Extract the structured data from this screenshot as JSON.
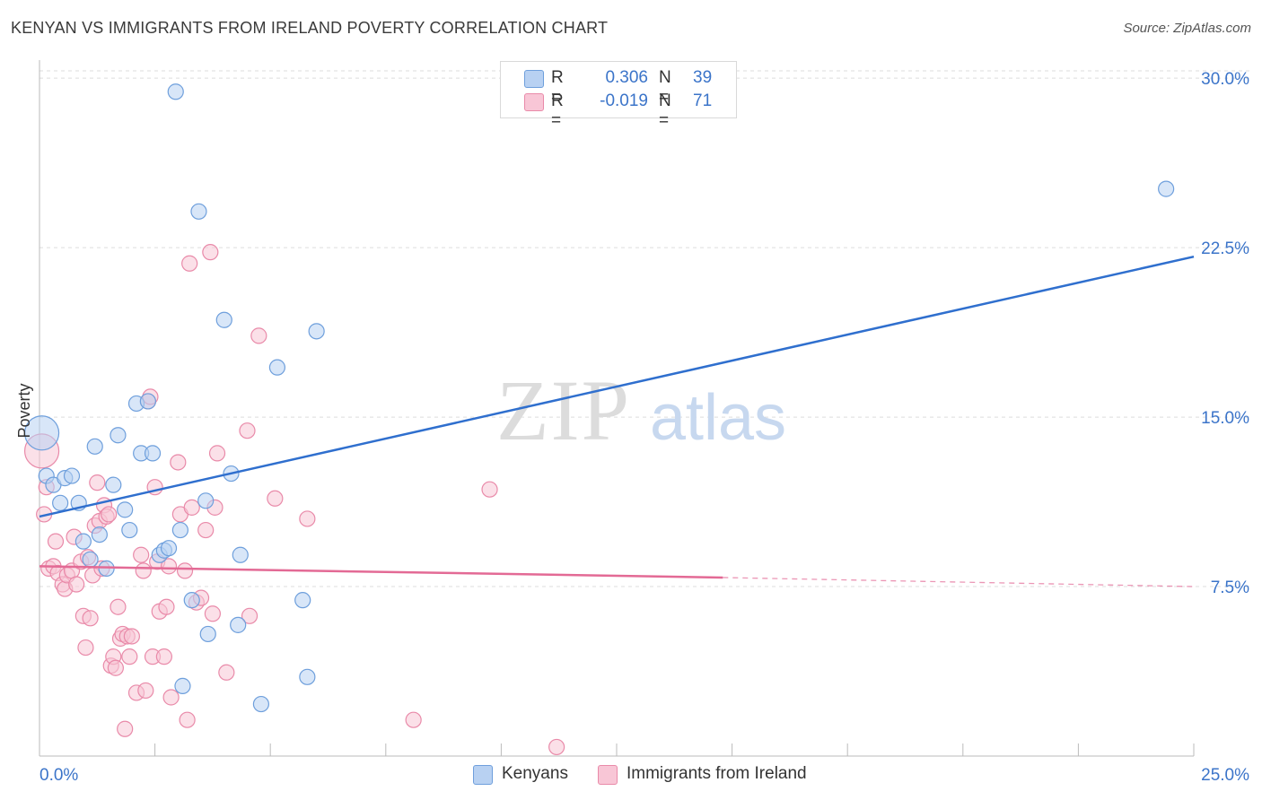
{
  "header": {
    "title": "KENYAN VS IMMIGRANTS FROM IRELAND POVERTY CORRELATION CHART",
    "source": "Source: ZipAtlas.com"
  },
  "legend": {
    "r_label": "R =",
    "n_label": "N =",
    "kenyans": {
      "r": "0.306",
      "n": "39"
    },
    "ireland": {
      "r": "-0.019",
      "n": "71"
    }
  },
  "watermark": {
    "zip": "ZIP",
    "atlas": "atlas"
  },
  "colors": {
    "kenyans_fill": "#b8d1f2",
    "kenyans_stroke": "#6e9fdc",
    "kenyans_line": "#2f6fce",
    "ireland_fill": "#f8c6d6",
    "ireland_stroke": "#e98aa9",
    "ireland_line": "#e36a95",
    "tick_label": "#3b74c9",
    "grid": "#dddddd"
  },
  "chart_data": {
    "type": "scatter",
    "title": "KENYAN VS IMMIGRANTS FROM IRELAND POVERTY CORRELATION CHART",
    "xlabel": "",
    "ylabel": "Poverty",
    "xlim": [
      0,
      25
    ],
    "ylim": [
      0,
      30.8
    ],
    "x_tick_labels": {
      "left": "0.0%",
      "right": "25.0%"
    },
    "y_ticks": [
      {
        "value": 7.5,
        "label": "7.5%"
      },
      {
        "value": 15.0,
        "label": "15.0%"
      },
      {
        "value": 22.5,
        "label": "22.5%"
      },
      {
        "value": 30.0,
        "label": "30.0%"
      }
    ],
    "series": [
      {
        "name": "Kenyans",
        "r": 0.306,
        "n": 39,
        "trend": {
          "x0": 0,
          "y0": 10.6,
          "x1": 25,
          "y1": 22.1
        },
        "points": [
          {
            "x": 0.05,
            "y": 14.3,
            "big": true
          },
          {
            "x": 0.15,
            "y": 12.4
          },
          {
            "x": 0.3,
            "y": 12.0
          },
          {
            "x": 0.45,
            "y": 11.2
          },
          {
            "x": 0.55,
            "y": 12.3
          },
          {
            "x": 0.7,
            "y": 12.4
          },
          {
            "x": 0.85,
            "y": 11.2
          },
          {
            "x": 0.95,
            "y": 9.5
          },
          {
            "x": 1.1,
            "y": 8.7
          },
          {
            "x": 1.2,
            "y": 13.7
          },
          {
            "x": 1.3,
            "y": 9.8
          },
          {
            "x": 1.45,
            "y": 8.3
          },
          {
            "x": 1.6,
            "y": 12.0
          },
          {
            "x": 1.7,
            "y": 14.2
          },
          {
            "x": 1.85,
            "y": 10.9
          },
          {
            "x": 1.95,
            "y": 10.0
          },
          {
            "x": 2.1,
            "y": 15.6
          },
          {
            "x": 2.2,
            "y": 13.4
          },
          {
            "x": 2.35,
            "y": 15.7
          },
          {
            "x": 2.45,
            "y": 13.4
          },
          {
            "x": 2.6,
            "y": 8.9
          },
          {
            "x": 2.7,
            "y": 9.1
          },
          {
            "x": 2.8,
            "y": 9.2
          },
          {
            "x": 2.95,
            "y": 29.4
          },
          {
            "x": 3.1,
            "y": 3.1
          },
          {
            "x": 3.05,
            "y": 10.0
          },
          {
            "x": 3.3,
            "y": 6.9
          },
          {
            "x": 3.45,
            "y": 24.1
          },
          {
            "x": 3.6,
            "y": 11.3
          },
          {
            "x": 3.65,
            "y": 5.4
          },
          {
            "x": 4.0,
            "y": 19.3
          },
          {
            "x": 4.15,
            "y": 12.5
          },
          {
            "x": 4.3,
            "y": 5.8
          },
          {
            "x": 4.35,
            "y": 8.9
          },
          {
            "x": 4.8,
            "y": 2.3
          },
          {
            "x": 5.15,
            "y": 17.2
          },
          {
            "x": 5.7,
            "y": 6.9
          },
          {
            "x": 5.8,
            "y": 3.5
          },
          {
            "x": 6.0,
            "y": 18.8
          },
          {
            "x": 24.4,
            "y": 25.1
          }
        ]
      },
      {
        "name": "Immigrants from Ireland",
        "r": -0.019,
        "n": 71,
        "trend": {
          "x0": 0,
          "y0": 8.4,
          "x1": 14.8,
          "y1": 7.9,
          "dash_to_x": 25,
          "dash_to_y": 7.5
        },
        "points": [
          {
            "x": 0.05,
            "y": 13.5,
            "big": true
          },
          {
            "x": 0.1,
            "y": 10.7
          },
          {
            "x": 0.15,
            "y": 11.9
          },
          {
            "x": 0.2,
            "y": 8.3
          },
          {
            "x": 0.3,
            "y": 8.4
          },
          {
            "x": 0.35,
            "y": 9.5
          },
          {
            "x": 0.4,
            "y": 8.1
          },
          {
            "x": 0.5,
            "y": 7.6
          },
          {
            "x": 0.55,
            "y": 7.4
          },
          {
            "x": 0.6,
            "y": 8.0
          },
          {
            "x": 0.7,
            "y": 8.2
          },
          {
            "x": 0.75,
            "y": 9.7
          },
          {
            "x": 0.8,
            "y": 7.6
          },
          {
            "x": 0.9,
            "y": 8.6
          },
          {
            "x": 0.95,
            "y": 6.2
          },
          {
            "x": 1.0,
            "y": 4.8
          },
          {
            "x": 1.05,
            "y": 8.8
          },
          {
            "x": 1.1,
            "y": 6.1
          },
          {
            "x": 1.15,
            "y": 8.0
          },
          {
            "x": 1.2,
            "y": 10.2
          },
          {
            "x": 1.25,
            "y": 12.1
          },
          {
            "x": 1.3,
            "y": 10.4
          },
          {
            "x": 1.35,
            "y": 8.3
          },
          {
            "x": 1.4,
            "y": 11.1
          },
          {
            "x": 1.45,
            "y": 10.6
          },
          {
            "x": 1.5,
            "y": 10.7
          },
          {
            "x": 1.55,
            "y": 4.0
          },
          {
            "x": 1.6,
            "y": 4.4
          },
          {
            "x": 1.65,
            "y": 3.9
          },
          {
            "x": 1.7,
            "y": 6.6
          },
          {
            "x": 1.75,
            "y": 5.2
          },
          {
            "x": 1.8,
            "y": 5.4
          },
          {
            "x": 1.85,
            "y": 1.2
          },
          {
            "x": 1.9,
            "y": 5.3
          },
          {
            "x": 1.95,
            "y": 4.4
          },
          {
            "x": 2.0,
            "y": 5.3
          },
          {
            "x": 2.1,
            "y": 2.8
          },
          {
            "x": 2.2,
            "y": 8.9
          },
          {
            "x": 2.25,
            "y": 8.2
          },
          {
            "x": 2.3,
            "y": 2.9
          },
          {
            "x": 2.35,
            "y": 15.7
          },
          {
            "x": 2.4,
            "y": 15.9
          },
          {
            "x": 2.45,
            "y": 4.4
          },
          {
            "x": 2.5,
            "y": 11.9
          },
          {
            "x": 2.55,
            "y": 8.6
          },
          {
            "x": 2.6,
            "y": 6.4
          },
          {
            "x": 2.7,
            "y": 4.4
          },
          {
            "x": 2.75,
            "y": 6.6
          },
          {
            "x": 2.8,
            "y": 8.4
          },
          {
            "x": 2.85,
            "y": 2.6
          },
          {
            "x": 3.0,
            "y": 13.0
          },
          {
            "x": 3.05,
            "y": 10.7
          },
          {
            "x": 3.15,
            "y": 8.2
          },
          {
            "x": 3.2,
            "y": 1.6
          },
          {
            "x": 3.25,
            "y": 21.8
          },
          {
            "x": 3.3,
            "y": 11.0
          },
          {
            "x": 3.4,
            "y": 6.8
          },
          {
            "x": 3.5,
            "y": 7.0
          },
          {
            "x": 3.6,
            "y": 10.0
          },
          {
            "x": 3.7,
            "y": 22.3
          },
          {
            "x": 3.75,
            "y": 6.3
          },
          {
            "x": 3.8,
            "y": 11.0
          },
          {
            "x": 3.85,
            "y": 13.4
          },
          {
            "x": 4.05,
            "y": 3.7
          },
          {
            "x": 4.5,
            "y": 14.4
          },
          {
            "x": 4.55,
            "y": 6.2
          },
          {
            "x": 4.75,
            "y": 18.6
          },
          {
            "x": 5.1,
            "y": 11.4
          },
          {
            "x": 5.8,
            "y": 10.5
          },
          {
            "x": 8.1,
            "y": 1.6
          },
          {
            "x": 9.75,
            "y": 11.8
          },
          {
            "x": 11.2,
            "y": 0.4
          }
        ]
      }
    ]
  },
  "bottom_legend": {
    "kenyans": "Kenyans",
    "ireland": "Immigrants from Ireland"
  }
}
